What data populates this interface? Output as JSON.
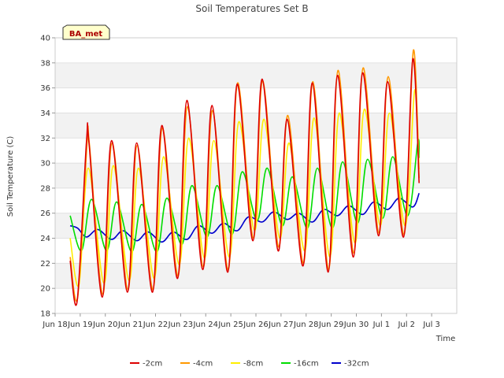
{
  "chart_data": {
    "type": "line",
    "title": "Soil Temperatures Set B",
    "xlabel": "Time",
    "ylabel": "Soil Temperature (C)",
    "badge": "BA_met",
    "ylim": [
      18,
      40
    ],
    "yticks": [
      18,
      20,
      22,
      24,
      26,
      28,
      30,
      32,
      34,
      36,
      38,
      40
    ],
    "xlim": [
      0,
      16
    ],
    "xticks": [
      {
        "x": 0,
        "label": "Jun 18"
      },
      {
        "x": 1,
        "label": "Jun 19"
      },
      {
        "x": 2,
        "label": "Jun 20"
      },
      {
        "x": 3,
        "label": "Jun 21"
      },
      {
        "x": 4,
        "label": "Jun 22"
      },
      {
        "x": 5,
        "label": "Jun 23"
      },
      {
        "x": 6,
        "label": "Jun 24"
      },
      {
        "x": 7,
        "label": "Jun 25"
      },
      {
        "x": 8,
        "label": "Jun 26"
      },
      {
        "x": 9,
        "label": "Jun 27"
      },
      {
        "x": 10,
        "label": "Jun 28"
      },
      {
        "x": 11,
        "label": "Jun 29"
      },
      {
        "x": 12,
        "label": "Jun 30"
      },
      {
        "x": 13,
        "label": "Jul 1"
      },
      {
        "x": 14,
        "label": "Jul 2"
      },
      {
        "x": 15,
        "label": "Jul 3"
      }
    ],
    "grid": "horizontal bands",
    "legend_position": "bottom",
    "series": [
      {
        "name": "-2cm",
        "color": "#dd0000",
        "points": [
          [
            0.6,
            22.2
          ],
          [
            0.88,
            19.0
          ],
          [
            1.25,
            31.7
          ],
          [
            1.35,
            31.6
          ],
          [
            1.88,
            19.3
          ],
          [
            2.25,
            31.8
          ],
          [
            2.88,
            19.7
          ],
          [
            3.25,
            31.6
          ],
          [
            3.88,
            19.7
          ],
          [
            4.25,
            33.0
          ],
          [
            4.88,
            20.8
          ],
          [
            5.25,
            35.0
          ],
          [
            5.88,
            21.5
          ],
          [
            6.25,
            34.6
          ],
          [
            6.88,
            21.3
          ],
          [
            7.25,
            36.3
          ],
          [
            7.88,
            23.8
          ],
          [
            8.25,
            36.7
          ],
          [
            8.88,
            23.0
          ],
          [
            9.25,
            33.5
          ],
          [
            9.88,
            21.8
          ],
          [
            10.25,
            36.4
          ],
          [
            10.88,
            21.3
          ],
          [
            11.25,
            37.0
          ],
          [
            11.88,
            22.5
          ],
          [
            12.25,
            37.2
          ],
          [
            12.88,
            24.2
          ],
          [
            13.25,
            36.5
          ],
          [
            13.88,
            24.1
          ],
          [
            14.25,
            38.3
          ],
          [
            14.5,
            28.4
          ]
        ]
      },
      {
        "name": "-4cm",
        "color": "#ff9900",
        "points": [
          [
            0.6,
            22.5
          ],
          [
            0.9,
            19.3
          ],
          [
            1.27,
            31.5
          ],
          [
            1.37,
            31.4
          ],
          [
            1.9,
            19.5
          ],
          [
            2.27,
            31.6
          ],
          [
            2.9,
            19.9
          ],
          [
            3.27,
            31.4
          ],
          [
            3.9,
            19.9
          ],
          [
            4.27,
            32.8
          ],
          [
            4.9,
            21.0
          ],
          [
            5.27,
            34.5
          ],
          [
            5.9,
            21.7
          ],
          [
            6.27,
            34.2
          ],
          [
            6.9,
            21.5
          ],
          [
            7.27,
            36.4
          ],
          [
            7.9,
            24.0
          ],
          [
            8.27,
            36.6
          ],
          [
            8.9,
            23.3
          ],
          [
            9.27,
            33.8
          ],
          [
            9.9,
            22.0
          ],
          [
            10.27,
            36.5
          ],
          [
            10.9,
            21.5
          ],
          [
            11.27,
            37.4
          ],
          [
            11.9,
            22.8
          ],
          [
            12.27,
            37.6
          ],
          [
            12.9,
            24.4
          ],
          [
            13.27,
            36.9
          ],
          [
            13.9,
            24.3
          ],
          [
            14.27,
            39.0
          ],
          [
            14.5,
            28.8
          ]
        ]
      },
      {
        "name": "-8cm",
        "color": "#ffee00",
        "points": [
          [
            0.6,
            24.0
          ],
          [
            0.95,
            20.3
          ],
          [
            1.32,
            29.6
          ],
          [
            1.95,
            20.4
          ],
          [
            2.32,
            29.8
          ],
          [
            2.95,
            20.6
          ],
          [
            3.32,
            29.6
          ],
          [
            3.95,
            20.8
          ],
          [
            4.32,
            30.5
          ],
          [
            4.95,
            21.9
          ],
          [
            5.32,
            32.0
          ],
          [
            5.95,
            22.4
          ],
          [
            6.32,
            31.8
          ],
          [
            6.95,
            22.5
          ],
          [
            7.32,
            33.3
          ],
          [
            7.95,
            24.6
          ],
          [
            8.32,
            33.5
          ],
          [
            8.95,
            24.0
          ],
          [
            9.32,
            31.6
          ],
          [
            9.95,
            23.0
          ],
          [
            10.32,
            33.6
          ],
          [
            10.95,
            22.5
          ],
          [
            11.32,
            34.0
          ],
          [
            11.95,
            23.6
          ],
          [
            12.32,
            34.3
          ],
          [
            12.95,
            25.0
          ],
          [
            13.32,
            34.0
          ],
          [
            13.95,
            25.0
          ],
          [
            14.32,
            35.8
          ],
          [
            14.5,
            29.5
          ]
        ]
      },
      {
        "name": "-16cm",
        "color": "#00dd00",
        "points": [
          [
            0.6,
            25.8
          ],
          [
            1.05,
            23.0
          ],
          [
            1.45,
            27.1
          ],
          [
            2.05,
            23.0
          ],
          [
            2.45,
            26.9
          ],
          [
            3.05,
            22.9
          ],
          [
            3.45,
            26.7
          ],
          [
            4.05,
            22.9
          ],
          [
            4.45,
            27.2
          ],
          [
            5.05,
            23.5
          ],
          [
            5.45,
            28.2
          ],
          [
            6.05,
            24.1
          ],
          [
            6.45,
            28.2
          ],
          [
            7.05,
            24.3
          ],
          [
            7.45,
            29.3
          ],
          [
            8.05,
            25.4
          ],
          [
            8.45,
            29.6
          ],
          [
            9.05,
            25.0
          ],
          [
            9.45,
            28.9
          ],
          [
            10.05,
            24.8
          ],
          [
            10.45,
            29.6
          ],
          [
            11.05,
            24.8
          ],
          [
            11.45,
            30.1
          ],
          [
            12.05,
            25.2
          ],
          [
            12.45,
            30.3
          ],
          [
            13.05,
            25.6
          ],
          [
            13.45,
            30.5
          ],
          [
            14.05,
            25.8
          ],
          [
            14.45,
            31.7
          ],
          [
            14.5,
            30.4
          ]
        ]
      },
      {
        "name": "-32cm",
        "color": "#0000cc",
        "points": [
          [
            0.6,
            25.0
          ],
          [
            0.9,
            24.8
          ],
          [
            1.25,
            24.1
          ],
          [
            1.7,
            24.7
          ],
          [
            2.25,
            23.9
          ],
          [
            2.7,
            24.6
          ],
          [
            3.25,
            23.8
          ],
          [
            3.7,
            24.5
          ],
          [
            4.25,
            23.7
          ],
          [
            4.7,
            24.5
          ],
          [
            5.25,
            23.9
          ],
          [
            5.7,
            25.0
          ],
          [
            6.25,
            24.4
          ],
          [
            6.7,
            25.2
          ],
          [
            7.25,
            24.6
          ],
          [
            7.7,
            25.7
          ],
          [
            8.25,
            25.3
          ],
          [
            8.7,
            26.1
          ],
          [
            9.25,
            25.5
          ],
          [
            9.7,
            26.0
          ],
          [
            10.25,
            25.3
          ],
          [
            10.7,
            26.3
          ],
          [
            11.25,
            25.8
          ],
          [
            11.7,
            26.6
          ],
          [
            12.25,
            25.9
          ],
          [
            12.7,
            26.9
          ],
          [
            13.25,
            26.3
          ],
          [
            13.7,
            27.2
          ],
          [
            14.25,
            26.5
          ],
          [
            14.5,
            27.6
          ]
        ]
      }
    ]
  }
}
